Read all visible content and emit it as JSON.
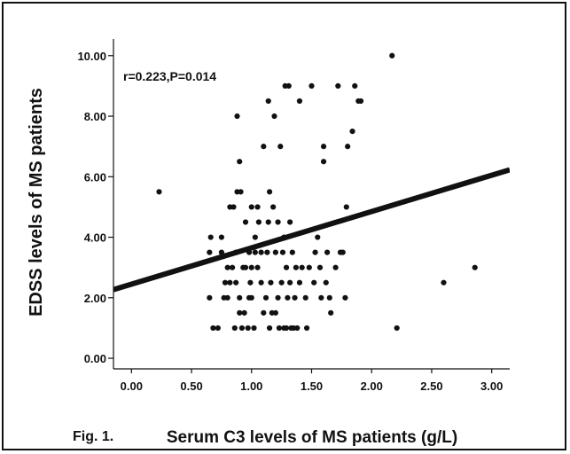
{
  "figure": {
    "label": "Fig. 1."
  },
  "chart_data": {
    "type": "scatter",
    "title": "",
    "annotation": "r=0.223,P=0.014",
    "xlabel": "Serum C3 levels of MS patients (g/L)",
    "ylabel": "EDSS levels of MS patients",
    "xlim": [
      -0.15,
      3.15
    ],
    "ylim": [
      -0.35,
      10.55
    ],
    "xticks": [
      "0.00",
      "0.50",
      "1.00",
      "1.50",
      "2.00",
      "2.50",
      "3.00"
    ],
    "yticks": [
      "0.00",
      "2.00",
      "4.00",
      "6.00",
      "8.00",
      "10.00"
    ],
    "grid": false,
    "legend": "none",
    "fit_line": {
      "intercept": 2.45,
      "slope": 1.2
    },
    "colors": {
      "points": "#111111",
      "line": "#111111",
      "axis": "#111111"
    },
    "points": [
      [
        0.23,
        5.5
      ],
      [
        0.65,
        2.0
      ],
      [
        0.65,
        3.5
      ],
      [
        0.66,
        4.0
      ],
      [
        0.68,
        1.0
      ],
      [
        0.72,
        1.0
      ],
      [
        0.75,
        3.5
      ],
      [
        0.75,
        4.0
      ],
      [
        0.77,
        2.0
      ],
      [
        0.78,
        2.5
      ],
      [
        0.8,
        2.0
      ],
      [
        0.8,
        3.0
      ],
      [
        0.82,
        2.5
      ],
      [
        0.82,
        5.0
      ],
      [
        0.84,
        3.0
      ],
      [
        0.85,
        5.0
      ],
      [
        0.86,
        1.0
      ],
      [
        0.87,
        2.5
      ],
      [
        0.87,
        3.5
      ],
      [
        0.88,
        5.5
      ],
      [
        0.88,
        8.0
      ],
      [
        0.9,
        6.5
      ],
      [
        0.9,
        1.5
      ],
      [
        0.9,
        2.0
      ],
      [
        0.91,
        5.5
      ],
      [
        0.92,
        1.0
      ],
      [
        0.93,
        3.0
      ],
      [
        0.94,
        1.5
      ],
      [
        0.95,
        3.0
      ],
      [
        0.95,
        4.5
      ],
      [
        0.97,
        1.0
      ],
      [
        0.98,
        2.0
      ],
      [
        0.98,
        3.5
      ],
      [
        0.99,
        2.5
      ],
      [
        1.0,
        3.0
      ],
      [
        1.0,
        5.0
      ],
      [
        1.0,
        2.0
      ],
      [
        1.02,
        1.0
      ],
      [
        1.03,
        3.5
      ],
      [
        1.03,
        4.0
      ],
      [
        1.05,
        3.0
      ],
      [
        1.05,
        5.0
      ],
      [
        1.06,
        4.5
      ],
      [
        1.08,
        2.5
      ],
      [
        1.08,
        3.5
      ],
      [
        1.1,
        1.5
      ],
      [
        1.1,
        7.0
      ],
      [
        1.12,
        2.0
      ],
      [
        1.13,
        3.5
      ],
      [
        1.14,
        8.5
      ],
      [
        1.14,
        4.5
      ],
      [
        1.15,
        5.5
      ],
      [
        1.15,
        1.0
      ],
      [
        1.16,
        2.5
      ],
      [
        1.17,
        1.5
      ],
      [
        1.18,
        5.0
      ],
      [
        1.19,
        8.0
      ],
      [
        1.2,
        3.5
      ],
      [
        1.2,
        1.5
      ],
      [
        1.22,
        2.0
      ],
      [
        1.22,
        4.5
      ],
      [
        1.23,
        1.0
      ],
      [
        1.24,
        7.0
      ],
      [
        1.25,
        2.5
      ],
      [
        1.26,
        3.5
      ],
      [
        1.27,
        1.0
      ],
      [
        1.27,
        4.0
      ],
      [
        1.28,
        9.0
      ],
      [
        1.29,
        3.0
      ],
      [
        1.29,
        1.0
      ],
      [
        1.3,
        2.0
      ],
      [
        1.31,
        9.0
      ],
      [
        1.32,
        4.5
      ],
      [
        1.32,
        2.5
      ],
      [
        1.33,
        1.0
      ],
      [
        1.34,
        3.5
      ],
      [
        1.35,
        1.0
      ],
      [
        1.36,
        2.0
      ],
      [
        1.37,
        3.0
      ],
      [
        1.38,
        1.0
      ],
      [
        1.4,
        8.5
      ],
      [
        1.4,
        2.5
      ],
      [
        1.42,
        3.0
      ],
      [
        1.45,
        2.0
      ],
      [
        1.46,
        1.0
      ],
      [
        1.48,
        3.0
      ],
      [
        1.5,
        9.0
      ],
      [
        1.52,
        2.5
      ],
      [
        1.53,
        3.5
      ],
      [
        1.55,
        4.0
      ],
      [
        1.57,
        3.0
      ],
      [
        1.58,
        2.0
      ],
      [
        1.6,
        7.0
      ],
      [
        1.6,
        6.5
      ],
      [
        1.62,
        2.5
      ],
      [
        1.63,
        3.5
      ],
      [
        1.65,
        2.0
      ],
      [
        1.66,
        1.5
      ],
      [
        1.7,
        3.0
      ],
      [
        1.72,
        9.0
      ],
      [
        1.74,
        3.5
      ],
      [
        1.76,
        3.5
      ],
      [
        1.78,
        2.0
      ],
      [
        1.79,
        5.0
      ],
      [
        1.8,
        7.0
      ],
      [
        1.84,
        7.5
      ],
      [
        1.86,
        9.0
      ],
      [
        1.89,
        8.5
      ],
      [
        1.91,
        8.5
      ],
      [
        2.17,
        10.0
      ],
      [
        2.21,
        1.0
      ],
      [
        2.6,
        2.5
      ],
      [
        2.86,
        3.0
      ]
    ]
  }
}
